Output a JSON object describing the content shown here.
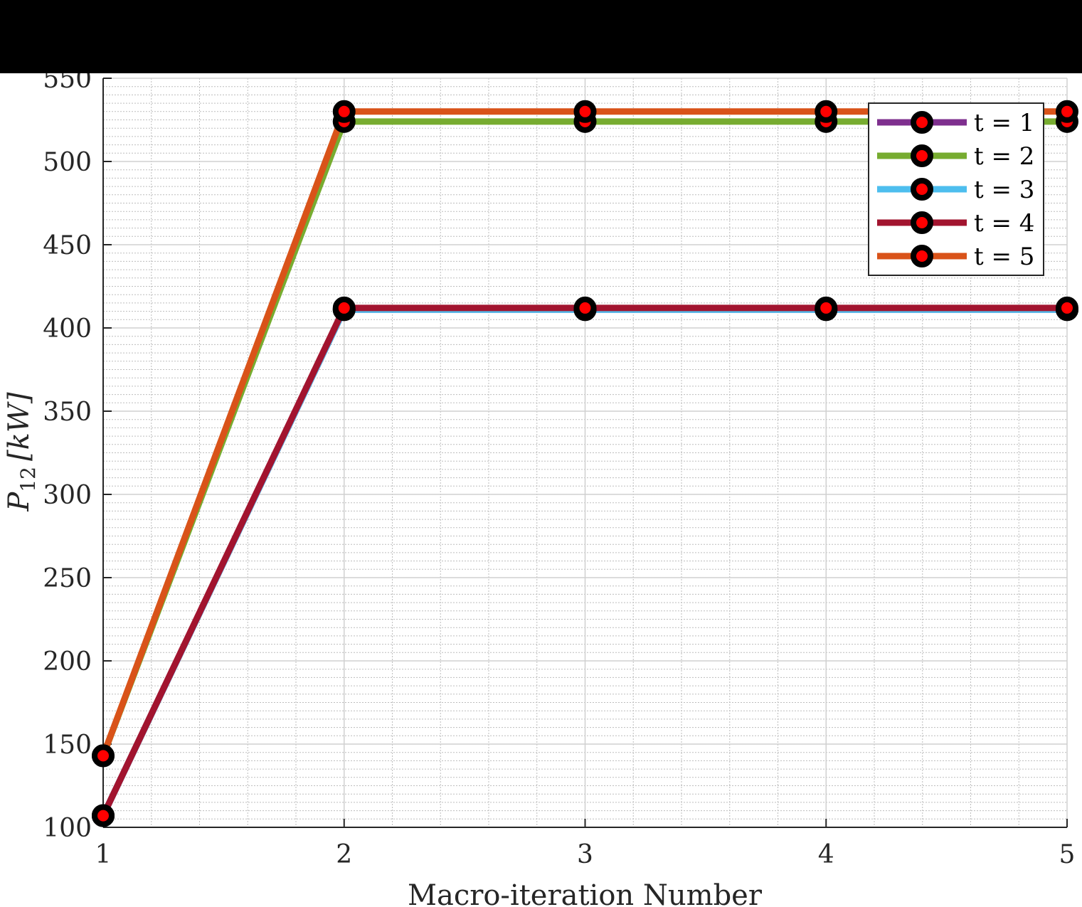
{
  "chart_data": {
    "type": "line",
    "title": "",
    "xlabel": "Macro-iteration Number",
    "ylabel": {
      "symbol": "P",
      "subscript": "12",
      "unit": "[kW]"
    },
    "x": [
      1,
      2,
      3,
      4,
      5
    ],
    "xlim": [
      1,
      5
    ],
    "ylim": [
      100,
      550
    ],
    "xticks": [
      1,
      2,
      3,
      4,
      5
    ],
    "yticks": [
      100,
      150,
      200,
      250,
      300,
      350,
      400,
      450,
      500,
      550
    ],
    "grid": true,
    "minor_grid": true,
    "legend_position": "top-right",
    "marker": {
      "edge_color": "#000000",
      "face_color": "#ff0000"
    },
    "series": [
      {
        "name": "t = 1",
        "color": "#7e2f8e",
        "values": [
          107,
          411,
          411,
          411,
          411
        ]
      },
      {
        "name": "t = 2",
        "color": "#77ac30",
        "values": [
          143,
          524,
          524,
          524,
          524
        ]
      },
      {
        "name": "t = 3",
        "color": "#4dbeee",
        "values": [
          107,
          411,
          411,
          411,
          411
        ]
      },
      {
        "name": "t = 4",
        "color": "#a2142f",
        "values": [
          107,
          412,
          412,
          412,
          412
        ]
      },
      {
        "name": "t = 5",
        "color": "#d95319",
        "values": [
          143,
          530,
          530,
          530,
          530
        ]
      }
    ]
  }
}
